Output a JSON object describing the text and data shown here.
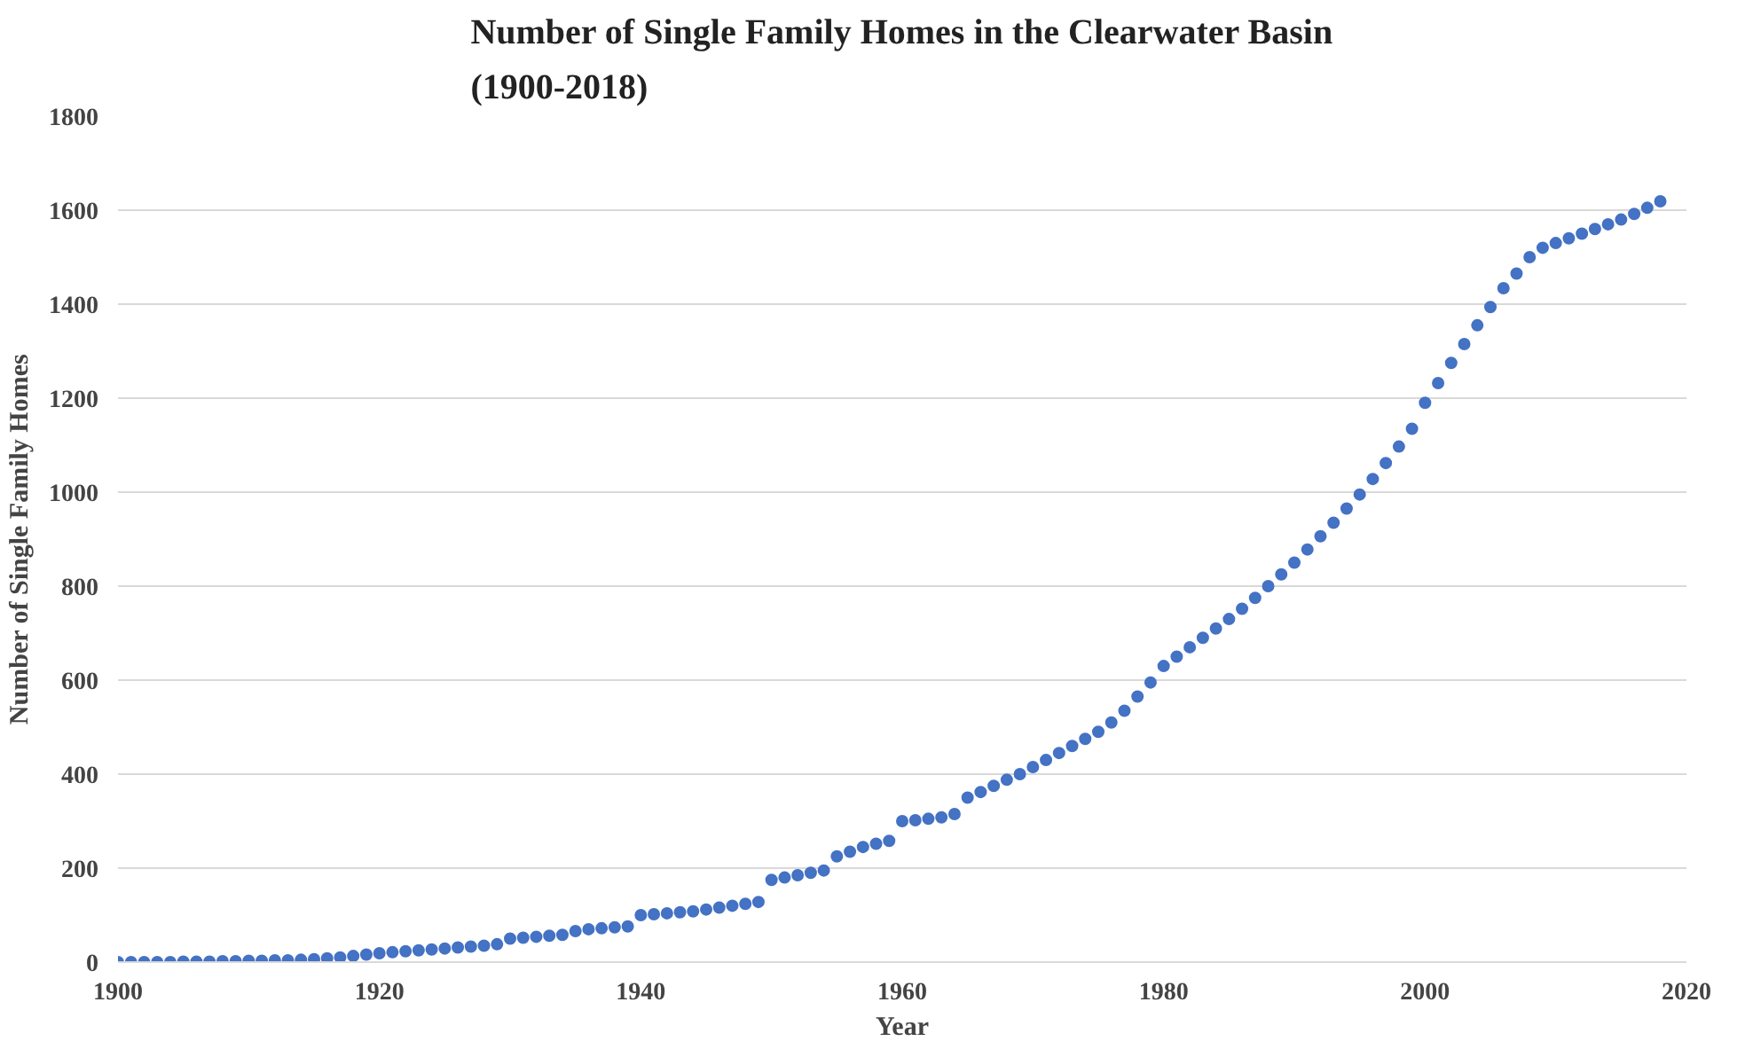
{
  "chart_data": {
    "type": "scatter",
    "title": "Number of Single Family Homes in the Clearwater Basin\n(1900-2018)",
    "xlabel": "Year",
    "ylabel": "Number of Single Family Homes",
    "x": [
      1900,
      1901,
      1902,
      1903,
      1904,
      1905,
      1906,
      1907,
      1908,
      1909,
      1910,
      1911,
      1912,
      1913,
      1914,
      1915,
      1916,
      1917,
      1918,
      1919,
      1920,
      1921,
      1922,
      1923,
      1924,
      1925,
      1926,
      1927,
      1928,
      1929,
      1930,
      1931,
      1932,
      1933,
      1934,
      1935,
      1936,
      1937,
      1938,
      1939,
      1940,
      1941,
      1942,
      1943,
      1944,
      1945,
      1946,
      1947,
      1948,
      1949,
      1950,
      1951,
      1952,
      1953,
      1954,
      1955,
      1956,
      1957,
      1958,
      1959,
      1960,
      1961,
      1962,
      1963,
      1964,
      1965,
      1966,
      1967,
      1968,
      1969,
      1970,
      1971,
      1972,
      1973,
      1974,
      1975,
      1976,
      1977,
      1978,
      1979,
      1980,
      1981,
      1982,
      1983,
      1984,
      1985,
      1986,
      1987,
      1988,
      1989,
      1990,
      1991,
      1992,
      1993,
      1994,
      1995,
      1996,
      1997,
      1998,
      1999,
      2000,
      2001,
      2002,
      2003,
      2004,
      2005,
      2006,
      2007,
      2008,
      2009,
      2010,
      2011,
      2012,
      2013,
      2014,
      2015,
      2016,
      2017,
      2018
    ],
    "series": [
      {
        "color": "#4472c4",
        "values": [
          0,
          0,
          0,
          0,
          0,
          1,
          1,
          1,
          2,
          2,
          3,
          3,
          4,
          4,
          5,
          6,
          8,
          10,
          13,
          16,
          19,
          21,
          23,
          25,
          27,
          29,
          31,
          33,
          35,
          38,
          50,
          52,
          54,
          56,
          58,
          66,
          70,
          72,
          74,
          76,
          100,
          102,
          104,
          106,
          108,
          112,
          116,
          120,
          124,
          128,
          175,
          180,
          185,
          190,
          195,
          225,
          235,
          245,
          252,
          258,
          300,
          302,
          305,
          308,
          315,
          350,
          362,
          375,
          388,
          400,
          415,
          430,
          445,
          460,
          475,
          490,
          510,
          535,
          565,
          595,
          630,
          650,
          670,
          690,
          710,
          730,
          752,
          775,
          800,
          825,
          850,
          878,
          906,
          935,
          965,
          995,
          1028,
          1062,
          1097,
          1135,
          1190,
          1232,
          1275,
          1315,
          1355,
          1394,
          1434,
          1465,
          1500,
          1520,
          1530,
          1540,
          1550,
          1560,
          1570,
          1580,
          1592,
          1605,
          1619
        ]
      }
    ],
    "xlim": [
      1900,
      2020
    ],
    "xticks": [
      1900,
      1920,
      1940,
      1960,
      1980,
      2000,
      2020
    ],
    "ylim": [
      0,
      1800
    ],
    "yticks": [
      0,
      200,
      400,
      600,
      800,
      1000,
      1200,
      1400,
      1600,
      1800
    ],
    "grid": "y",
    "marker": "circle"
  }
}
